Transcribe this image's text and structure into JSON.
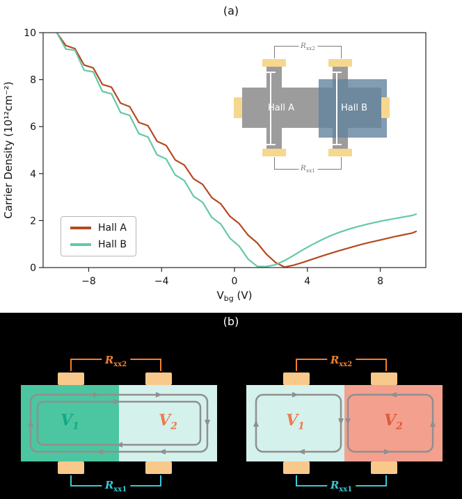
{
  "figure": {
    "panel_a_label": "(a)",
    "panel_b_label": "(b)"
  },
  "chart_data": {
    "type": "line",
    "xlabel": {
      "pre": "V",
      "sub": "bg",
      "post": " (V)"
    },
    "ylabel": "Carrier Density (10¹²cm⁻²)",
    "xlim": [
      -10.5,
      10.5
    ],
    "ylim": [
      0,
      10
    ],
    "xticks": [
      -8,
      -4,
      0,
      4,
      8
    ],
    "xtick_labels": [
      "−8",
      "−4",
      "0",
      "4",
      "8"
    ],
    "yticks": [
      0,
      2,
      4,
      6,
      8,
      10
    ],
    "ytick_labels": [
      "0",
      "2",
      "4",
      "6",
      "8",
      "10"
    ],
    "grid": false,
    "legend_location": "lower left",
    "x": [
      -9.75,
      -9.25,
      -8.75,
      -8.25,
      -7.75,
      -7.25,
      -6.75,
      -6.25,
      -5.75,
      -5.25,
      -4.75,
      -4.25,
      -3.75,
      -3.25,
      -2.75,
      -2.25,
      -1.75,
      -1.25,
      -0.75,
      -0.25,
      0.25,
      0.75,
      1.25,
      1.75,
      2.25,
      2.75,
      3.25,
      3.75,
      4.25,
      4.75,
      5.25,
      5.75,
      6.25,
      6.75,
      7.25,
      7.75,
      8.25,
      8.75,
      9.25,
      9.75,
      10.0
    ],
    "series": [
      {
        "name": "Hall A",
        "color": "#b5491f",
        "y": [
          10.0,
          9.45,
          9.32,
          8.62,
          8.5,
          7.8,
          7.68,
          7.0,
          6.85,
          6.18,
          6.04,
          5.38,
          5.2,
          4.58,
          4.36,
          3.78,
          3.54,
          2.98,
          2.71,
          2.18,
          1.88,
          1.38,
          1.05,
          0.57,
          0.22,
          0.02,
          0.1,
          0.22,
          0.35,
          0.48,
          0.6,
          0.72,
          0.83,
          0.94,
          1.04,
          1.13,
          1.22,
          1.31,
          1.39,
          1.47,
          1.55
        ]
      },
      {
        "name": "Hall B",
        "color": "#63c8a7",
        "y": [
          10.0,
          9.3,
          9.25,
          8.4,
          8.33,
          7.5,
          7.4,
          6.6,
          6.48,
          5.7,
          5.56,
          4.8,
          4.62,
          3.94,
          3.7,
          3.04,
          2.78,
          2.14,
          1.85,
          1.25,
          0.92,
          0.36,
          0.05,
          0.04,
          0.12,
          0.3,
          0.52,
          0.75,
          0.97,
          1.17,
          1.35,
          1.5,
          1.63,
          1.74,
          1.84,
          1.93,
          2.01,
          2.08,
          2.15,
          2.22,
          2.28
        ]
      }
    ]
  },
  "inset": {
    "hall_a_label": "Hall A",
    "hall_b_label": "Hall B",
    "rxx2": {
      "main": "R",
      "sub": "xx2"
    },
    "rxx1": {
      "main": "R",
      "sub": "xx1"
    },
    "colors": {
      "device": "#9c9c9c",
      "hall_b_overlay": "rgba(99,131,157,0.8)",
      "contact": "#f6d78e",
      "bracket": "#7a7a7a",
      "probe": "#ffffff",
      "text": "#ffffff"
    }
  },
  "panel_b": {
    "colors": {
      "contact": "#f8c98b",
      "loop": "#8f8f8f",
      "background": "#000000"
    },
    "devices": [
      {
        "name": "same-sign-device",
        "halves": {
          "left": "#4cc6a0",
          "right": "#d4f1ec"
        },
        "v1": {
          "main": "V",
          "sub": "1",
          "color": "#12a987"
        },
        "v2": {
          "main": "V",
          "sub": "2",
          "color": "#ee7a50"
        },
        "rxx2": {
          "main": "R",
          "sub": "xx2",
          "color": "#f08030"
        },
        "rxx1": {
          "main": "R",
          "sub": "xx1",
          "color": "#3bc8d8"
        }
      },
      {
        "name": "opposite-sign-device",
        "halves": {
          "left": "#d4f1ec",
          "right": "#f4a08f"
        },
        "v1": {
          "main": "V",
          "sub": "1",
          "color": "#ee7a50"
        },
        "v2": {
          "main": "V",
          "sub": "2",
          "color": "#e2593a"
        },
        "rxx2": {
          "main": "R",
          "sub": "xx2",
          "color": "#f08030"
        },
        "rxx1": {
          "main": "R",
          "sub": "xx1",
          "color": "#3bc8d8"
        }
      }
    ]
  }
}
